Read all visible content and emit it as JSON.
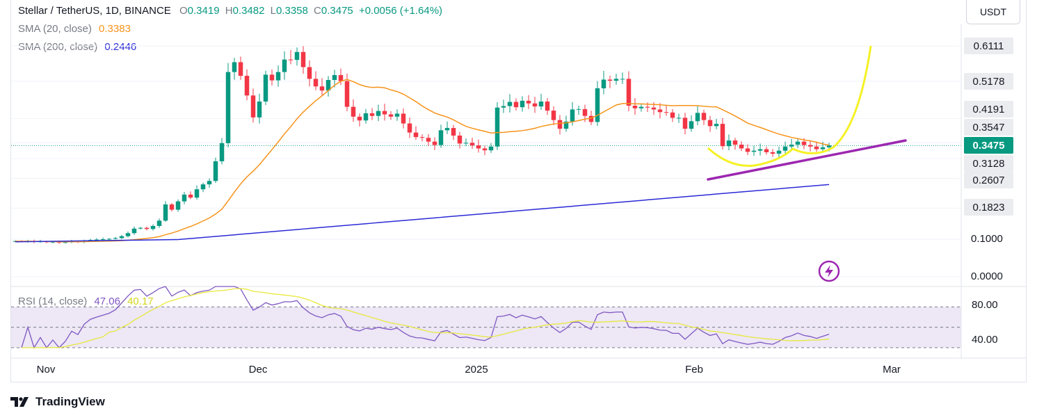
{
  "header": {
    "symbol": "Stellar / TetherUS, 1D, BINANCE",
    "o_label": "O",
    "o_value": "0.3419",
    "h_label": "H",
    "h_value": "0.3482",
    "l_label": "L",
    "l_value": "0.3358",
    "c_label": "C",
    "c_value": "0.3475",
    "change": "+0.0056 (+1.64%)",
    "sma20_label": "SMA (20, close)",
    "sma20_value": "0.3383",
    "sma200_label": "SMA (200, close)",
    "sma200_value": "0.2446"
  },
  "unit": "USDT",
  "price_tags": [
    {
      "text": "0.6111",
      "style": "gray"
    },
    {
      "text": "0.5178",
      "style": "gray"
    },
    {
      "text": "0.4191",
      "style": "gray"
    },
    {
      "text": "0.3547",
      "style": "gray"
    },
    {
      "text": "0.3475",
      "style": "green"
    },
    {
      "text": "0.3128",
      "style": "gray"
    },
    {
      "text": "0.2607",
      "style": "gray"
    },
    {
      "text": "0.1823",
      "style": "gray"
    }
  ],
  "price_axis_plain": [
    "0.1000",
    "0.0000"
  ],
  "rsi": {
    "label": "RSI (14, close)",
    "value": "47.06",
    "ma_value": "40.17",
    "axis": [
      "80.00",
      "40.00"
    ]
  },
  "x_axis": [
    "Nov",
    "Dec",
    "2025",
    "Feb",
    "Mar"
  ],
  "brand": "TradingView",
  "colors": {
    "up": "#089981",
    "down": "#f23645",
    "sma20": "#f7931a",
    "sma200": "#2a2ad6",
    "trendline": "#9c27b0",
    "projection": "#f5f125",
    "rsi_line": "#7e57c2",
    "rsi_ma": "#e8e83a",
    "rsi_band": "#ede7f6"
  },
  "chart_data": {
    "type": "candlestick",
    "title": "Stellar / TetherUS, 1D, BINANCE",
    "ylim": [
      0,
      0.66
    ],
    "yticks": [
      0.0,
      0.1,
      0.1823,
      0.2607,
      0.3128,
      0.3547,
      0.4191,
      0.5178,
      0.6111
    ],
    "x_ticks": [
      "Nov",
      "Dec",
      "2025",
      "Feb",
      "Mar"
    ],
    "close": [
      0.095,
      0.094,
      0.095,
      0.093,
      0.094,
      0.092,
      0.093,
      0.091,
      0.092,
      0.094,
      0.093,
      0.096,
      0.098,
      0.099,
      0.1,
      0.101,
      0.103,
      0.108,
      0.116,
      0.128,
      0.13,
      0.127,
      0.135,
      0.149,
      0.192,
      0.178,
      0.2,
      0.218,
      0.21,
      0.232,
      0.245,
      0.254,
      0.306,
      0.354,
      0.542,
      0.568,
      0.532,
      0.48,
      0.422,
      0.464,
      0.535,
      0.52,
      0.542,
      0.575,
      0.574,
      0.595,
      0.555,
      0.524,
      0.504,
      0.493,
      0.521,
      0.534,
      0.518,
      0.45,
      0.424,
      0.414,
      0.433,
      0.426,
      0.439,
      0.43,
      0.424,
      0.432,
      0.406,
      0.382,
      0.37,
      0.368,
      0.358,
      0.349,
      0.388,
      0.394,
      0.374,
      0.353,
      0.355,
      0.348,
      0.34,
      0.335,
      0.345,
      0.448,
      0.452,
      0.463,
      0.449,
      0.466,
      0.459,
      0.451,
      0.464,
      0.44,
      0.415,
      0.392,
      0.411,
      0.443,
      0.444,
      0.426,
      0.41,
      0.499,
      0.522,
      0.519,
      0.524,
      0.524,
      0.453,
      0.446,
      0.45,
      0.448,
      0.443,
      0.436,
      0.435,
      0.421,
      0.421,
      0.392,
      0.412,
      0.434,
      0.415,
      0.399,
      0.405,
      0.346,
      0.361,
      0.35,
      0.34,
      0.331,
      0.334,
      0.338,
      0.33,
      0.326,
      0.334,
      0.345,
      0.35,
      0.358,
      0.349,
      0.345,
      0.338,
      0.343,
      0.348
    ],
    "series": [
      {
        "name": "SMA (20, close)",
        "last": 0.3383
      },
      {
        "name": "SMA (200, close)",
        "last": 0.2446
      },
      {
        "name": "RSI (14, close)",
        "last": 47.06
      }
    ]
  }
}
